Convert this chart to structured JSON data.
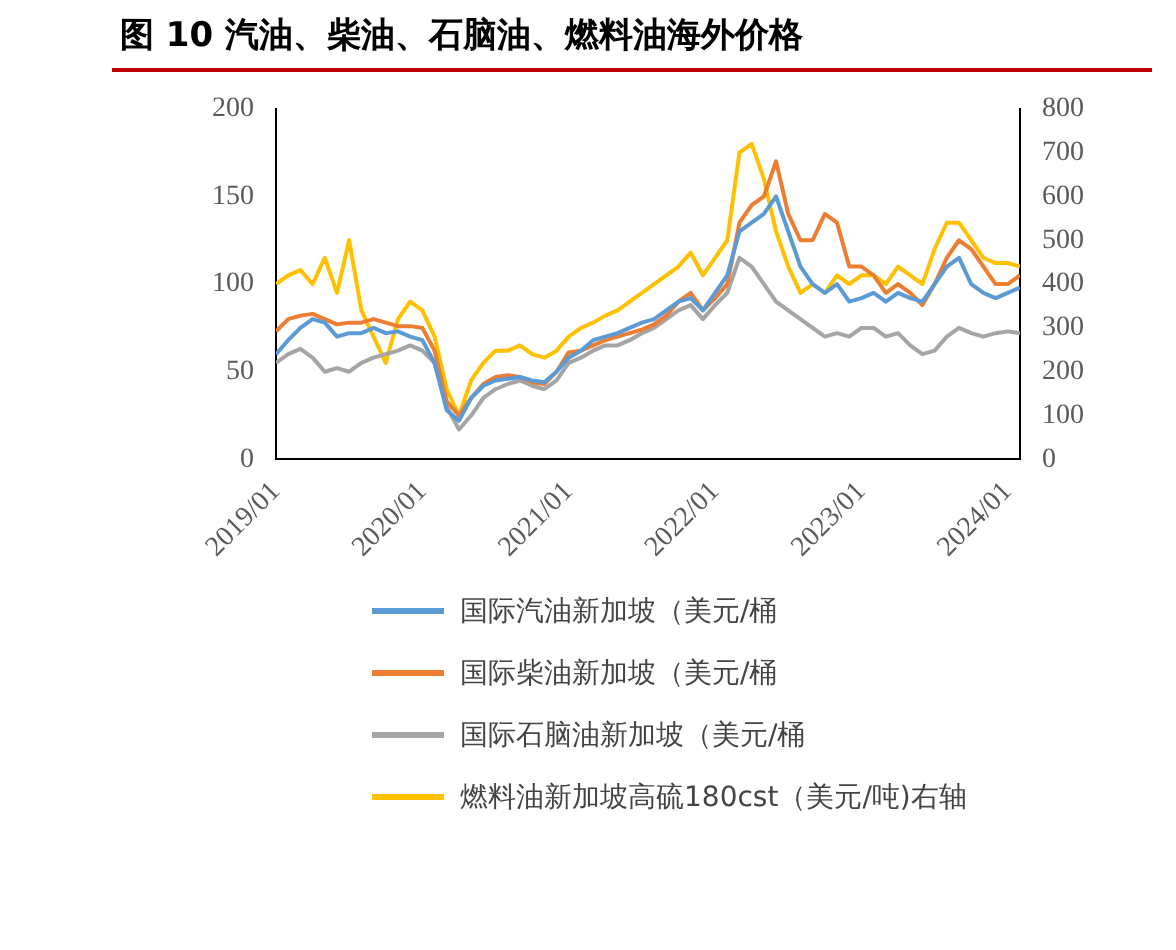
{
  "chart_data": {
    "type": "line",
    "title": "图 10 汽油、柴油、石脑油、燃料油海外价格",
    "x": [
      "2019-01",
      "2019-02",
      "2019-03",
      "2019-04",
      "2019-05",
      "2019-06",
      "2019-07",
      "2019-08",
      "2019-09",
      "2019-10",
      "2019-11",
      "2019-12",
      "2020-01",
      "2020-02",
      "2020-03",
      "2020-04",
      "2020-05",
      "2020-06",
      "2020-07",
      "2020-08",
      "2020-09",
      "2020-10",
      "2020-11",
      "2020-12",
      "2021-01",
      "2021-02",
      "2021-03",
      "2021-04",
      "2021-05",
      "2021-06",
      "2021-07",
      "2021-08",
      "2021-09",
      "2021-10",
      "2021-11",
      "2021-12",
      "2022-01",
      "2022-02",
      "2022-03",
      "2022-04",
      "2022-05",
      "2022-06",
      "2022-07",
      "2022-08",
      "2022-09",
      "2022-10",
      "2022-11",
      "2022-12",
      "2023-01",
      "2023-02",
      "2023-03",
      "2023-04",
      "2023-05",
      "2023-06",
      "2023-07",
      "2023-08",
      "2023-09",
      "2023-10",
      "2023-11",
      "2023-12",
      "2024-01",
      "2024-02"
    ],
    "series": [
      {
        "name": "国际汽油新加坡（美元/桶",
        "color": "#5b9bd5",
        "values": [
          60,
          68,
          75,
          80,
          78,
          70,
          72,
          72,
          75,
          72,
          73,
          70,
          68,
          55,
          28,
          22,
          35,
          42,
          45,
          46,
          47,
          45,
          44,
          50,
          58,
          62,
          68,
          70,
          72,
          75,
          78,
          80,
          85,
          90,
          92,
          85,
          95,
          105,
          130,
          135,
          140,
          150,
          130,
          110,
          100,
          95,
          100,
          90,
          92,
          95,
          90,
          95,
          92,
          90,
          100,
          110,
          115,
          100,
          95,
          92,
          95,
          98
        ]
      },
      {
        "name": "国际柴油新加坡（美元/桶",
        "color": "#ed7d31",
        "values": [
          73,
          80,
          82,
          83,
          80,
          77,
          78,
          78,
          80,
          78,
          76,
          76,
          75,
          62,
          33,
          25,
          35,
          43,
          47,
          48,
          47,
          44,
          43,
          50,
          61,
          62,
          65,
          68,
          70,
          72,
          74,
          77,
          82,
          90,
          95,
          85,
          92,
          100,
          135,
          145,
          150,
          170,
          140,
          125,
          125,
          140,
          135,
          110,
          110,
          105,
          95,
          100,
          95,
          88,
          100,
          115,
          125,
          120,
          110,
          100,
          100,
          105
        ]
      },
      {
        "name": "国际石脑油新加坡（美元/桶",
        "color": "#a5a5a5",
        "values": [
          55,
          60,
          63,
          58,
          50,
          52,
          50,
          55,
          58,
          60,
          62,
          65,
          62,
          55,
          30,
          17,
          25,
          35,
          40,
          43,
          45,
          42,
          40,
          45,
          55,
          58,
          62,
          65,
          65,
          68,
          72,
          75,
          80,
          85,
          88,
          80,
          88,
          95,
          115,
          110,
          100,
          90,
          85,
          80,
          75,
          70,
          72,
          70,
          75,
          75,
          70,
          72,
          65,
          60,
          62,
          70,
          75,
          72,
          70,
          72,
          73,
          72
        ]
      },
      {
        "name": "燃料油新加坡高硫180cst（美元/吨)右轴",
        "color": "#ffc000",
        "axis": "y2",
        "values": [
          400,
          420,
          432,
          400,
          460,
          380,
          500,
          340,
          280,
          220,
          320,
          360,
          340,
          280,
          160,
          100,
          180,
          220,
          248,
          248,
          260,
          240,
          232,
          248,
          280,
          300,
          312,
          328,
          340,
          360,
          380,
          400,
          420,
          440,
          472,
          420,
          460,
          500,
          700,
          720,
          640,
          520,
          440,
          380,
          400,
          380,
          420,
          400,
          420,
          420,
          400,
          440,
          420,
          400,
          480,
          540,
          540,
          500,
          460,
          448,
          448,
          440
        ]
      }
    ],
    "xlim": [
      "2019-01",
      "2024-02"
    ],
    "xticks": [
      {
        "value": "2019-01",
        "label": "2019/01"
      },
      {
        "value": "2020-01",
        "label": "2020/01"
      },
      {
        "value": "2021-01",
        "label": "2021/01"
      },
      {
        "value": "2022-01",
        "label": "2022/01"
      },
      {
        "value": "2023-01",
        "label": "2023/01"
      },
      {
        "value": "2024-01",
        "label": "2024/01"
      }
    ],
    "ylim": [
      0,
      200
    ],
    "yticks": [
      0,
      50,
      100,
      150,
      200
    ],
    "y2lim": [
      0,
      800
    ],
    "y2ticks": [
      0,
      100,
      200,
      300,
      400,
      500,
      600,
      700,
      800
    ],
    "grid": false,
    "legend": "bottom",
    "marker": "none",
    "line_style": "solid"
  }
}
